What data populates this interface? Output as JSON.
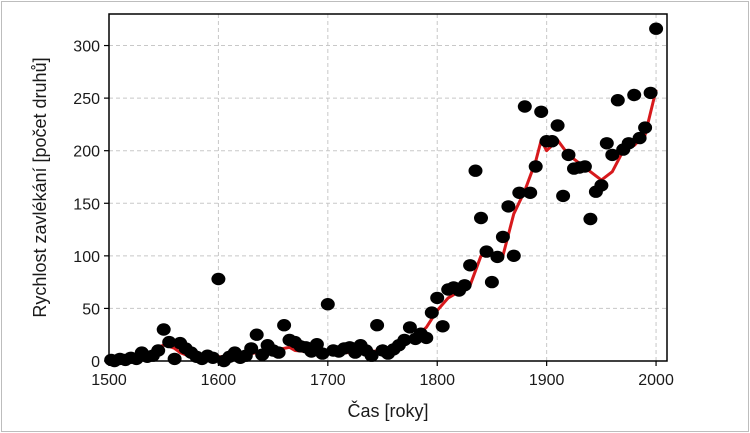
{
  "chart_data": {
    "type": "scatter",
    "title": "",
    "xlabel": "Čas [roky]",
    "ylabel": "Rychlost zavlékání [počet druhů]",
    "xlim": [
      1500,
      2010
    ],
    "ylim": [
      0,
      330
    ],
    "xticks": [
      1500,
      1600,
      1700,
      1800,
      1900,
      2000
    ],
    "yticks": [
      0,
      50,
      100,
      150,
      200,
      250,
      300
    ],
    "grid": true,
    "colors": {
      "points": "#000000",
      "line": "#d7191c",
      "grid": "#c8c8c8"
    },
    "series": [
      {
        "kind": "points",
        "x": [
          1502,
          1505,
          1510,
          1515,
          1520,
          1525,
          1530,
          1535,
          1540,
          1545,
          1550,
          1555,
          1560,
          1565,
          1570,
          1575,
          1580,
          1585,
          1590,
          1595,
          1600,
          1605,
          1610,
          1615,
          1620,
          1625,
          1630,
          1635,
          1640,
          1645,
          1650,
          1655,
          1660,
          1665,
          1670,
          1675,
          1680,
          1685,
          1690,
          1695,
          1700,
          1705,
          1710,
          1715,
          1720,
          1725,
          1730,
          1735,
          1740,
          1745,
          1750,
          1755,
          1760,
          1765,
          1770,
          1775,
          1780,
          1785,
          1790,
          1795,
          1800,
          1805,
          1810,
          1815,
          1820,
          1825,
          1830,
          1835,
          1840,
          1845,
          1850,
          1855,
          1860,
          1865,
          1870,
          1875,
          1880,
          1885,
          1890,
          1895,
          1900,
          1905,
          1910,
          1915,
          1920,
          1925,
          1930,
          1935,
          1940,
          1945,
          1950,
          1955,
          1960,
          1965,
          1970,
          1975,
          1980,
          1985,
          1990,
          1995,
          2000
        ],
        "y": [
          1,
          0,
          2,
          1,
          3,
          2,
          8,
          4,
          5,
          10,
          30,
          18,
          2,
          17,
          12,
          8,
          4,
          2,
          5,
          3,
          78,
          0,
          4,
          8,
          3,
          5,
          12,
          25,
          6,
          15,
          10,
          8,
          34,
          20,
          18,
          14,
          13,
          9,
          16,
          7,
          54,
          10,
          9,
          12,
          13,
          8,
          15,
          10,
          5,
          34,
          10,
          7,
          11,
          15,
          20,
          32,
          21,
          26,
          22,
          46,
          60,
          33,
          68,
          70,
          67,
          72,
          91,
          181,
          136,
          104,
          75,
          99,
          118,
          147,
          100,
          160,
          242,
          160,
          185,
          237,
          209,
          209,
          224,
          157,
          196,
          183,
          184,
          185,
          135,
          161,
          167,
          207,
          196,
          248,
          201,
          207,
          253,
          212,
          222,
          255,
          316
        ]
      },
      {
        "kind": "line",
        "x": [
          1500,
          1510,
          1520,
          1530,
          1540,
          1545,
          1550,
          1555,
          1560,
          1565,
          1570,
          1580,
          1590,
          1600,
          1610,
          1620,
          1630,
          1640,
          1650,
          1660,
          1665,
          1670,
          1680,
          1690,
          1700,
          1710,
          1720,
          1730,
          1740,
          1750,
          1760,
          1770,
          1780,
          1790,
          1800,
          1810,
          1820,
          1830,
          1840,
          1850,
          1860,
          1870,
          1880,
          1890,
          1895,
          1900,
          1910,
          1920,
          1930,
          1940,
          1950,
          1960,
          1970,
          1980,
          1990,
          2000
        ],
        "y": [
          1,
          1,
          2,
          5,
          9,
          13,
          15,
          14,
          12,
          8,
          6,
          5,
          4,
          4,
          4,
          5,
          7,
          9,
          10,
          12,
          13,
          10,
          9,
          8,
          8,
          8,
          8,
          8,
          9,
          10,
          15,
          19,
          23,
          32,
          48,
          60,
          66,
          72,
          100,
          102,
          100,
          140,
          162,
          190,
          210,
          200,
          210,
          196,
          188,
          180,
          172,
          180,
          200,
          205,
          215,
          258
        ]
      }
    ]
  }
}
